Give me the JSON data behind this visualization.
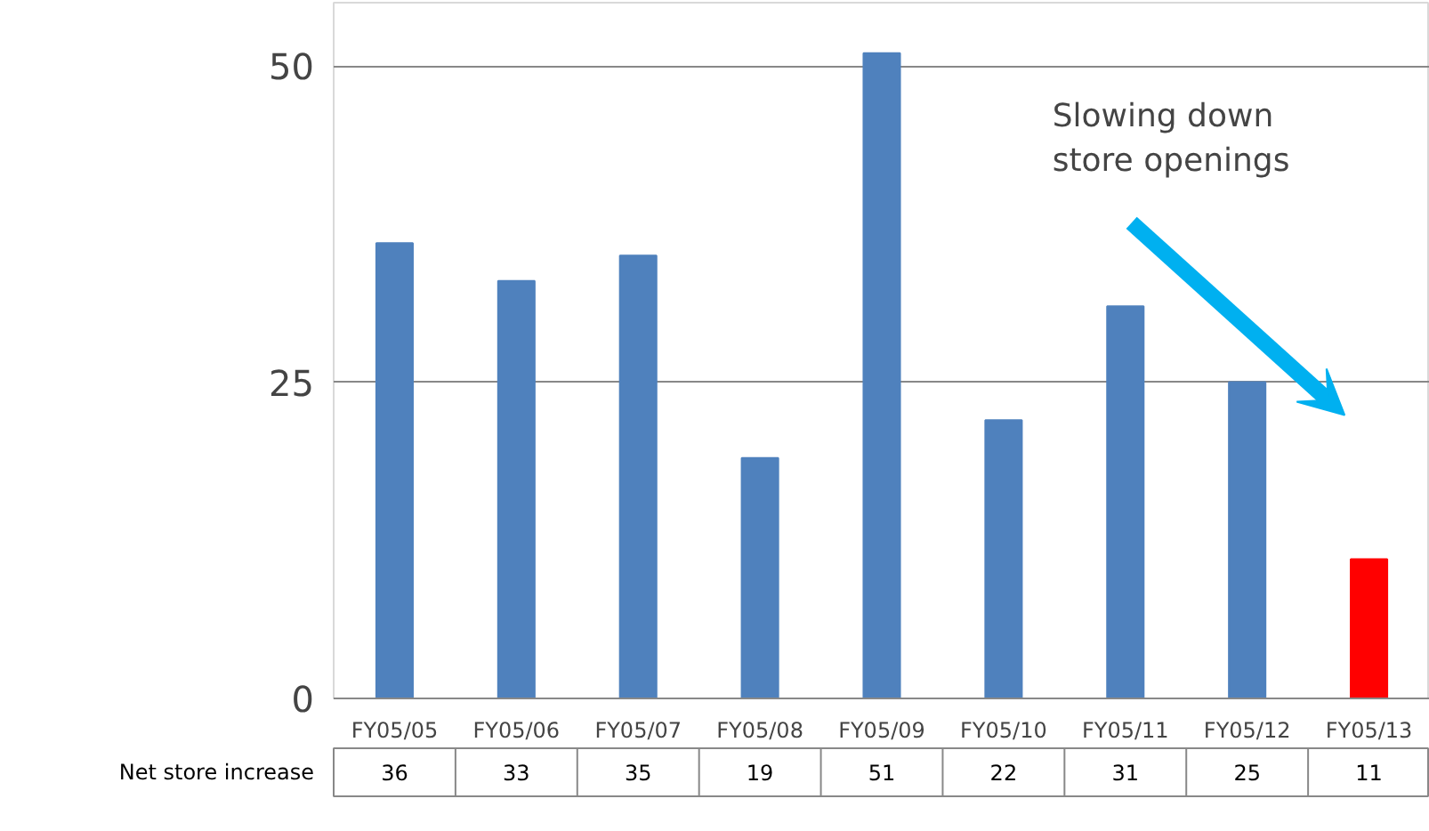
{
  "chart_data": {
    "type": "bar",
    "categories": [
      "FY05/05",
      "FY05/06",
      "FY05/07",
      "FY05/08",
      "FY05/09",
      "FY05/10",
      "FY05/11",
      "FY05/12",
      "FY05/13"
    ],
    "series": [
      {
        "name": "Net store increase",
        "values": [
          36,
          33,
          35,
          19,
          51,
          22,
          31,
          25,
          11
        ]
      }
    ],
    "colors": [
      "#4f81bd",
      "#4f81bd",
      "#4f81bd",
      "#4f81bd",
      "#4f81bd",
      "#4f81bd",
      "#4f81bd",
      "#4f81bd",
      "#ff0000"
    ],
    "ylim": [
      0,
      55
    ],
    "yticks": [
      0,
      25,
      50
    ],
    "grid": "y",
    "data_labels": true,
    "annotations": [
      "Slowing down\nstore openings"
    ]
  }
}
